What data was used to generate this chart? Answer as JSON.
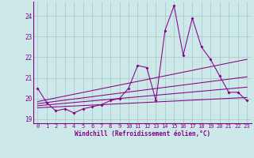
{
  "xlabel": "Windchill (Refroidissement éolien,°C)",
  "bg_color": "#cce8e8",
  "line_color": "#880088",
  "grid_color": "#aacccc",
  "xlim": [
    -0.5,
    23.5
  ],
  "ylim": [
    18.8,
    24.7
  ],
  "yticks": [
    19,
    20,
    21,
    22,
    23,
    24
  ],
  "xticks": [
    0,
    1,
    2,
    3,
    4,
    5,
    6,
    7,
    8,
    9,
    10,
    11,
    12,
    13,
    14,
    15,
    16,
    17,
    18,
    19,
    20,
    21,
    22,
    23
  ],
  "series": [
    [
      0,
      20.5
    ],
    [
      1,
      19.8
    ],
    [
      2,
      19.4
    ],
    [
      3,
      19.5
    ],
    [
      4,
      19.3
    ],
    [
      5,
      19.5
    ],
    [
      6,
      19.6
    ],
    [
      7,
      19.7
    ],
    [
      8,
      19.9
    ],
    [
      9,
      20.0
    ],
    [
      10,
      20.5
    ],
    [
      11,
      21.6
    ],
    [
      12,
      21.5
    ],
    [
      13,
      19.9
    ],
    [
      14,
      23.3
    ],
    [
      15,
      24.5
    ],
    [
      16,
      22.1
    ],
    [
      17,
      23.9
    ],
    [
      18,
      22.5
    ],
    [
      19,
      21.9
    ],
    [
      20,
      21.1
    ],
    [
      21,
      20.3
    ],
    [
      22,
      20.3
    ],
    [
      23,
      19.9
    ]
  ],
  "trend_lines": [
    {
      "x": [
        0,
        23
      ],
      "y": [
        19.85,
        21.9
      ]
    },
    {
      "x": [
        0,
        23
      ],
      "y": [
        19.75,
        21.05
      ]
    },
    {
      "x": [
        0,
        23
      ],
      "y": [
        19.65,
        20.55
      ]
    },
    {
      "x": [
        0,
        23
      ],
      "y": [
        19.55,
        20.05
      ]
    }
  ]
}
